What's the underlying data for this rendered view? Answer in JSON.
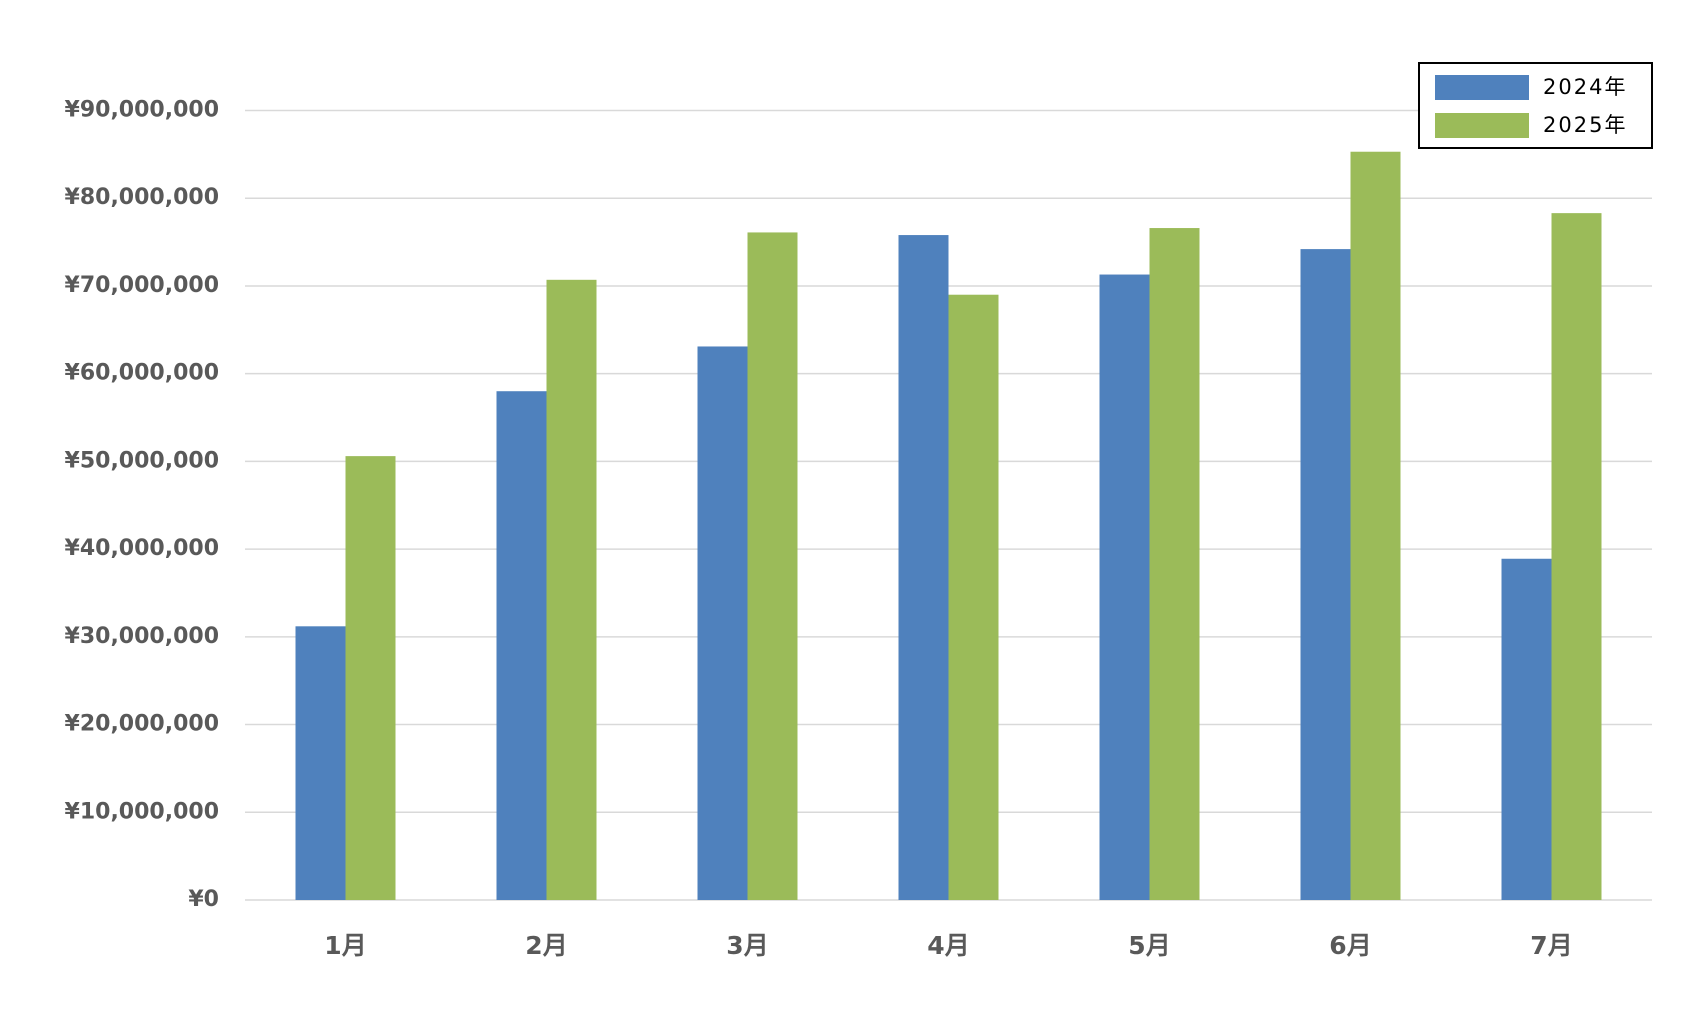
{
  "chart_data": {
    "type": "bar",
    "categories": [
      "1月",
      "2月",
      "3月",
      "4月",
      "5月",
      "6月",
      "7月"
    ],
    "series": [
      {
        "name": "2024年",
        "color": "#4f81bd",
        "values": [
          31200000,
          58000000,
          63100000,
          75800000,
          71300000,
          74200000,
          38900000
        ]
      },
      {
        "name": "2025年",
        "color": "#9bbb59",
        "values": [
          50600000,
          70700000,
          76100000,
          69000000,
          76600000,
          85300000,
          78300000
        ]
      }
    ],
    "ylim": [
      0,
      90000000
    ],
    "yticks": [
      {
        "value": 0,
        "label": "¥0"
      },
      {
        "value": 10000000,
        "label": "¥10,000,000"
      },
      {
        "value": 20000000,
        "label": "¥20,000,000"
      },
      {
        "value": 30000000,
        "label": "¥30,000,000"
      },
      {
        "value": 40000000,
        "label": "¥40,000,000"
      },
      {
        "value": 50000000,
        "label": "¥50,000,000"
      },
      {
        "value": 60000000,
        "label": "¥60,000,000"
      },
      {
        "value": 70000000,
        "label": "¥70,000,000"
      },
      {
        "value": 80000000,
        "label": "¥80,000,000"
      },
      {
        "value": 90000000,
        "label": "¥90,000,000"
      }
    ],
    "grid": true,
    "legend": "top-right"
  }
}
